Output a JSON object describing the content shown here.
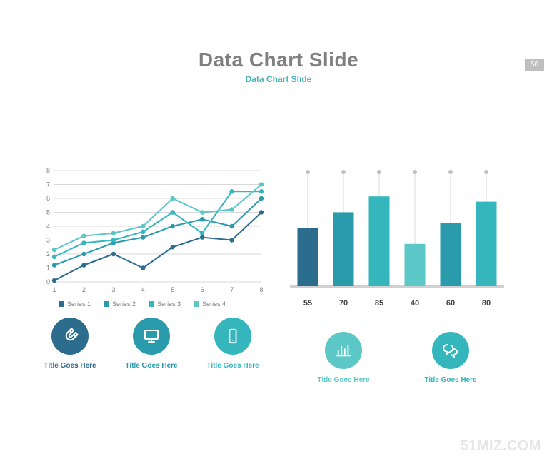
{
  "page_number": "56",
  "title": "Data Chart Slide",
  "subtitle": "Data Chart Slide",
  "watermark": "51MIZ.COM",
  "palette": {
    "dark_blue": "#2c6d8e",
    "mid_teal": "#2a9bab",
    "teal": "#35b6bd",
    "light_teal": "#5bc7c7",
    "grid": "#d9d9d9",
    "axis_text": "#808080",
    "title_grey": "#808080"
  },
  "line_chart": {
    "type": "line",
    "x_categories": [
      "1",
      "2",
      "3",
      "4",
      "5",
      "6",
      "7",
      "8"
    ],
    "ylim": [
      0,
      8
    ],
    "ytick_step": 1,
    "series": [
      {
        "name": "Series 1",
        "color": "#2c6d8e",
        "values": [
          0.1,
          1.2,
          2.0,
          1.0,
          2.5,
          3.2,
          3.0,
          5.0
        ]
      },
      {
        "name": "Series 2",
        "color": "#2a9bab",
        "values": [
          1.2,
          2.0,
          2.8,
          3.2,
          4.0,
          4.5,
          4.0,
          6.0
        ]
      },
      {
        "name": "Series 3",
        "color": "#35b6bd",
        "values": [
          1.8,
          2.8,
          3.0,
          3.6,
          5.0,
          3.5,
          6.5,
          6.5
        ]
      },
      {
        "name": "Series 4",
        "color": "#5bc7c7",
        "values": [
          2.3,
          3.3,
          3.5,
          4.0,
          6.0,
          5.0,
          5.2,
          7.0
        ]
      }
    ]
  },
  "bar_chart": {
    "type": "bar",
    "labels": [
      "55",
      "70",
      "85",
      "40",
      "60",
      "80"
    ],
    "values": [
      55,
      70,
      85,
      40,
      60,
      80
    ],
    "colors": [
      "#2c6d8e",
      "#2a9bab",
      "#35b6bd",
      "#5bc7c7",
      "#2a9bab",
      "#35b6bd"
    ],
    "ymax": 100,
    "marker_color": "#c0c0c0",
    "baseline_color": "#d0d0d0"
  },
  "left_icons": [
    {
      "icon": "magnet",
      "bg": "#2c6d8e",
      "label": "Title Goes Here",
      "label_color": "#2c6d8e"
    },
    {
      "icon": "monitor",
      "bg": "#2a9bab",
      "label": "Title Goes Here",
      "label_color": "#2a9bab"
    },
    {
      "icon": "mobile",
      "bg": "#35b6bd",
      "label": "Title Goes Here",
      "label_color": "#35b6bd"
    }
  ],
  "right_icons": [
    {
      "icon": "bars",
      "bg": "#5bc7c7",
      "label": "Title Goes Here",
      "label_color": "#5bc7c7"
    },
    {
      "icon": "bubbles",
      "bg": "#35b6bd",
      "label": "Title Goes Here",
      "label_color": "#35b6bd"
    }
  ]
}
